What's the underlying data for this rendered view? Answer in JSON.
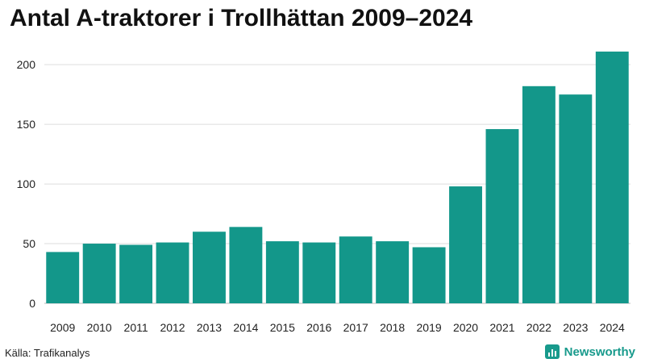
{
  "chart_data": {
    "type": "bar",
    "title": "Antal A-traktorer i Trollhättan 2009–2024",
    "categories": [
      "2009",
      "2010",
      "2011",
      "2012",
      "2013",
      "2014",
      "2015",
      "2016",
      "2017",
      "2018",
      "2019",
      "2020",
      "2021",
      "2022",
      "2023",
      "2024"
    ],
    "values": [
      43,
      50,
      49,
      51,
      60,
      64,
      52,
      51,
      56,
      52,
      47,
      98,
      146,
      182,
      175,
      211
    ],
    "xlabel": "",
    "ylabel": "",
    "ylim": [
      0,
      215
    ],
    "yticks": [
      0,
      50,
      100,
      150,
      200
    ],
    "grid": true,
    "bar_color": "#13978a",
    "grid_color": "#dddddd"
  },
  "source_text": "Källa: Trafikanalys",
  "brand": {
    "name": "Newsworthy",
    "color": "#189a8c"
  }
}
